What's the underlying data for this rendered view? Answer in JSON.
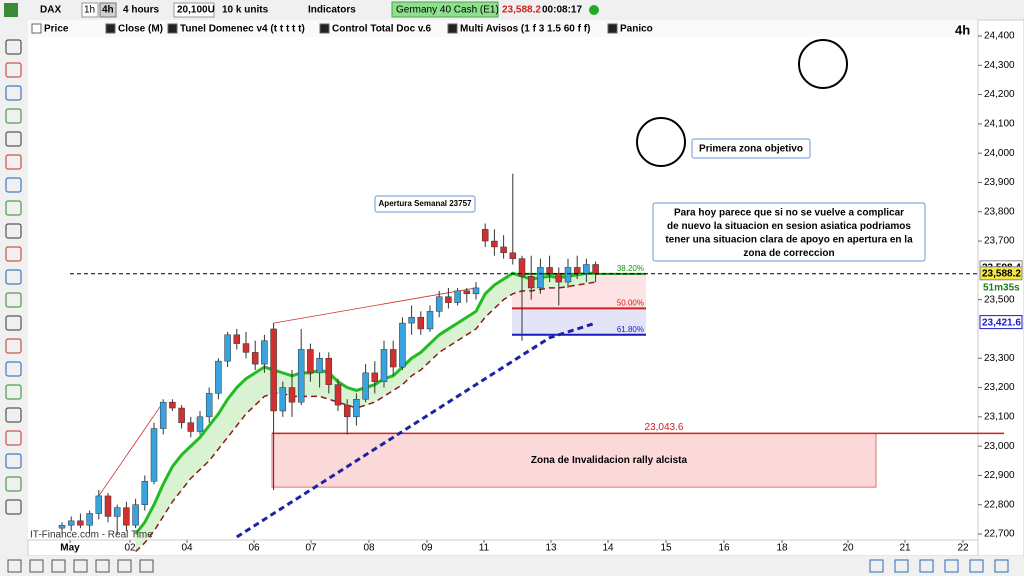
{
  "toolbar": {
    "symbol": "DAX",
    "tf1": "1h",
    "tf2": "4h",
    "period": "4 hours",
    "size": "20,100U",
    "units": "10 k units",
    "indicators": "Indicators",
    "instrument": "Germany 40 Cash (E1)",
    "price": "23,588.2",
    "timer": "00:08:17"
  },
  "indicator_bar": [
    "Price",
    "Close (M)",
    "Tunel Domenec v4 (t t t t t)",
    "Control Total Doc v.6",
    "Multi Avisos (1 f 3 1.5 60 f f)",
    "Panico"
  ],
  "timeframe_label": "4h",
  "footer": "IT-Finance.com - Real Time",
  "chart": {
    "up_color": "#38a3dd",
    "down_color": "#d03030",
    "candles": [
      [
        22720,
        22740,
        22700,
        22730
      ],
      [
        22730,
        22760,
        22710,
        22745
      ],
      [
        22745,
        22770,
        22720,
        22730
      ],
      [
        22730,
        22780,
        22700,
        22770
      ],
      [
        22770,
        22850,
        22750,
        22830
      ],
      [
        22830,
        22840,
        22740,
        22760
      ],
      [
        22760,
        22800,
        22700,
        22790
      ],
      [
        22790,
        22810,
        22710,
        22730
      ],
      [
        22730,
        22820,
        22720,
        22800
      ],
      [
        22800,
        22900,
        22780,
        22880
      ],
      [
        22880,
        23080,
        22870,
        23060
      ],
      [
        23060,
        23160,
        23040,
        23150
      ],
      [
        23150,
        23160,
        23120,
        23130
      ],
      [
        23130,
        23140,
        23060,
        23080
      ],
      [
        23080,
        23100,
        23030,
        23050
      ],
      [
        23050,
        23120,
        23040,
        23100
      ],
      [
        23100,
        23200,
        23080,
        23180
      ],
      [
        23180,
        23300,
        23160,
        23290
      ],
      [
        23290,
        23390,
        23270,
        23380
      ],
      [
        23380,
        23400,
        23330,
        23350
      ],
      [
        23350,
        23390,
        23300,
        23320
      ],
      [
        23320,
        23360,
        23260,
        23280
      ],
      [
        23280,
        23380,
        23250,
        23360
      ],
      [
        23400,
        23420,
        22850,
        23120
      ],
      [
        23120,
        23220,
        23100,
        23200
      ],
      [
        23200,
        23260,
        23100,
        23150
      ],
      [
        23150,
        23400,
        23140,
        23330
      ],
      [
        23330,
        23350,
        23220,
        23250
      ],
      [
        23250,
        23320,
        23200,
        23300
      ],
      [
        23300,
        23320,
        23180,
        23210
      ],
      [
        23210,
        23230,
        23120,
        23140
      ],
      [
        23140,
        23160,
        23040,
        23100
      ],
      [
        23100,
        23180,
        23070,
        23160
      ],
      [
        23160,
        23280,
        23150,
        23250
      ],
      [
        23250,
        23290,
        23180,
        23220
      ],
      [
        23220,
        23360,
        23200,
        23330
      ],
      [
        23330,
        23360,
        23240,
        23270
      ],
      [
        23270,
        23440,
        23260,
        23420
      ],
      [
        23420,
        23480,
        23380,
        23440
      ],
      [
        23440,
        23460,
        23380,
        23400
      ],
      [
        23400,
        23480,
        23390,
        23460
      ],
      [
        23460,
        23530,
        23440,
        23510
      ],
      [
        23510,
        23540,
        23470,
        23490
      ],
      [
        23490,
        23540,
        23480,
        23530
      ],
      [
        23530,
        23540,
        23490,
        23520
      ],
      [
        23520,
        23560,
        23500,
        23540
      ],
      [
        23740,
        23760,
        23680,
        23700
      ],
      [
        23700,
        23740,
        23650,
        23680
      ],
      [
        23680,
        23720,
        23640,
        23660
      ],
      [
        23660,
        23930,
        23620,
        23640
      ],
      [
        23640,
        23650,
        23360,
        23580
      ],
      [
        23580,
        23650,
        23500,
        23540
      ],
      [
        23540,
        23640,
        23520,
        23610
      ],
      [
        23610,
        23650,
        23560,
        23590
      ],
      [
        23590,
        23610,
        23480,
        23560
      ],
      [
        23560,
        23640,
        23540,
        23610
      ],
      [
        23610,
        23650,
        23570,
        23590
      ],
      [
        23590,
        23640,
        23560,
        23620
      ],
      [
        23620,
        23630,
        23560,
        23588.2
      ]
    ],
    "lines": [
      {
        "color": "#22bb22",
        "width": 3,
        "dash": false,
        "values": [
          null,
          null,
          null,
          null,
          null,
          null,
          null,
          null,
          22700,
          22740,
          22800,
          22870,
          22930,
          22970,
          23000,
          23030,
          23070,
          23110,
          23160,
          23200,
          23230,
          23250,
          23270,
          23260,
          23250,
          23240,
          23250,
          23250,
          23260,
          23250,
          23220,
          23200,
          23190,
          23200,
          23210,
          23230,
          23240,
          23270,
          23300,
          23320,
          23350,
          23380,
          23400,
          23420,
          23440,
          23460,
          23520,
          23550,
          23570,
          23590,
          23580,
          23570,
          23575,
          23580,
          23575,
          23580,
          23585,
          23590,
          23590
        ]
      },
      {
        "color": "#8b1a1a",
        "width": 1.5,
        "dash": true,
        "values": [
          null,
          null,
          null,
          null,
          null,
          null,
          null,
          null,
          22640,
          22670,
          22710,
          22760,
          22810,
          22850,
          22890,
          22920,
          22950,
          22990,
          23030,
          23070,
          23110,
          23140,
          23170,
          23180,
          23180,
          23170,
          23170,
          23170,
          23170,
          23160,
          23150,
          23140,
          23130,
          23140,
          23150,
          23170,
          23190,
          23210,
          23240,
          23260,
          23290,
          23320,
          23340,
          23360,
          23380,
          23400,
          23440,
          23470,
          23500,
          23520,
          23530,
          23530,
          23535,
          23540,
          23540,
          23545,
          23550,
          23555,
          23560
        ]
      },
      {
        "color": "#1c22a8",
        "width": 3,
        "dash": true,
        "values": [
          null,
          null,
          null,
          null,
          null,
          null,
          null,
          null,
          null,
          null,
          null,
          null,
          null,
          null,
          null,
          null,
          null,
          null,
          null,
          22690,
          22710,
          22730,
          22750,
          22770,
          22790,
          22810,
          22830,
          22850,
          22870,
          22890,
          22910,
          22930,
          22950,
          22970,
          22990,
          23010,
          23030,
          23050,
          23070,
          23090,
          23110,
          23130,
          23150,
          23170,
          23190,
          23210,
          23230,
          23250,
          23270,
          23290,
          23310,
          23330,
          23350,
          23370,
          23380,
          23390,
          23400,
          23410,
          23420
        ]
      }
    ],
    "band_fill": "#d8f2d2",
    "trendlines": [
      {
        "from": [
          4,
          22830
        ],
        "to": [
          11,
          23150
        ]
      },
      {
        "from": [
          23,
          23420
        ],
        "to": [
          45,
          23540
        ]
      }
    ],
    "price_ticks": [
      {
        "value": 24400,
        "label": "24,400"
      },
      {
        "value": 24300,
        "label": "24,300"
      },
      {
        "value": 24200,
        "label": "24,200"
      },
      {
        "value": 24100,
        "label": "24,100"
      },
      {
        "value": 24000,
        "label": "24,000"
      },
      {
        "value": 23900,
        "label": "23,900"
      },
      {
        "value": 23800,
        "label": "23,800"
      },
      {
        "value": 23700,
        "label": "23,700"
      },
      {
        "value": 23500,
        "label": "23,500"
      },
      {
        "value": 23300,
        "label": "23,300"
      },
      {
        "value": 23200,
        "label": "23,200"
      },
      {
        "value": 23100,
        "label": "23,100"
      },
      {
        "value": 23000,
        "label": "23,000"
      },
      {
        "value": 22900,
        "label": "22,900"
      },
      {
        "value": 22800,
        "label": "22,800"
      },
      {
        "value": 22700,
        "label": "22,700"
      }
    ],
    "price_tags": [
      {
        "value": 23598.4,
        "label": "23,598.4",
        "color": "#ffffff"
      },
      {
        "value": 23588.2,
        "label": "23,588.2",
        "color": "#f5e64a"
      },
      {
        "value": 23421.6,
        "label": "23,421.6",
        "color": "#ffffff"
      }
    ],
    "countdown": "51m35s",
    "dates": [
      "May",
      "02",
      "04",
      "06",
      "07",
      "08",
      "09",
      "11",
      "13",
      "14",
      "15",
      "16",
      "18",
      "20",
      "21",
      "22"
    ],
    "fib": [
      {
        "value": 23588,
        "label": "38.20%",
        "color": "#1a8f1a"
      },
      {
        "value": 23470,
        "label": "50.00%",
        "color": "#d02020"
      },
      {
        "value": 23380,
        "label": "61.80%",
        "color": "#1a1ac0"
      }
    ],
    "zone": {
      "value": 23043.6,
      "label": "23,043.6",
      "bottom": 22860,
      "text": "Zona de Invalidacion rally alcista"
    },
    "notes": {
      "weekly": "Apertura Semanal 23757",
      "target": "Primera zona objetivo",
      "comment": [
        "Para hoy parece que si no se vuelve a complicar",
        "de nuevo la situacion en sesion asiatica podriamos",
        "tener una situacion clara de apoyo en apertura en la",
        "zona de correccion"
      ]
    }
  }
}
